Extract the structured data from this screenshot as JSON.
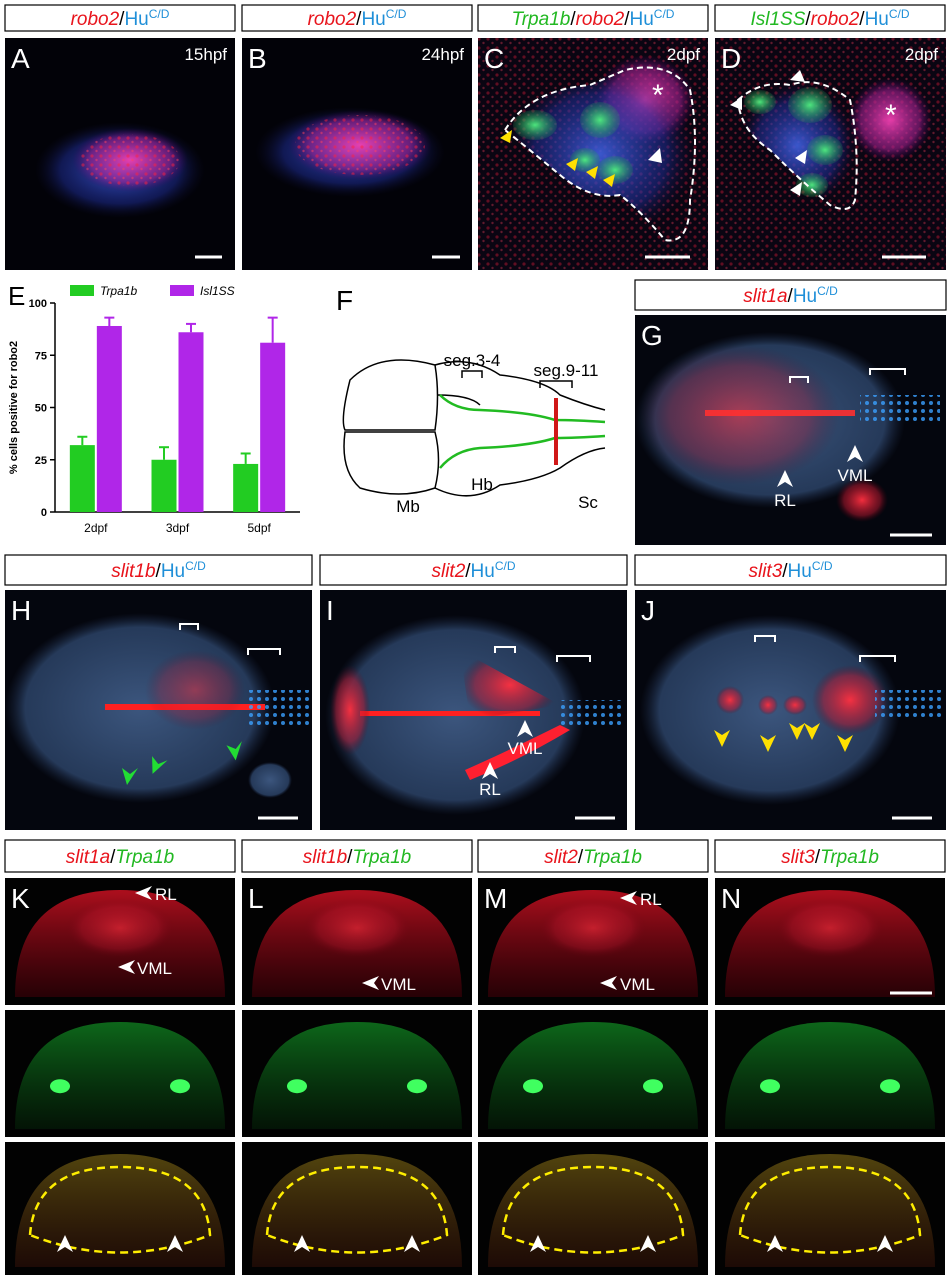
{
  "panels": {
    "A": {
      "letter": "A",
      "stage": "15hpf",
      "header": [
        {
          "text": "robo2",
          "color": "#e8141c"
        },
        {
          "text": "/",
          "color": "#000000"
        },
        {
          "text": "Hu",
          "color": "#1f8fd8"
        },
        {
          "text": "C/D",
          "color": "#1f8fd8"
        }
      ]
    },
    "B": {
      "letter": "B",
      "stage": "24hpf",
      "header": [
        {
          "text": "robo2",
          "color": "#e8141c"
        },
        {
          "text": "/",
          "color": "#000000"
        },
        {
          "text": "Hu",
          "color": "#1f8fd8"
        },
        {
          "text": "C/D",
          "color": "#1f8fd8"
        }
      ]
    },
    "C": {
      "letter": "C",
      "stage": "2dpf",
      "labels": [
        "*"
      ],
      "header": [
        {
          "text": "Trpa1b",
          "color": "#22b822"
        },
        {
          "text": "/",
          "color": "#000000"
        },
        {
          "text": "robo2",
          "color": "#e8141c"
        },
        {
          "text": "/",
          "color": "#000000"
        },
        {
          "text": "Hu",
          "color": "#1f8fd8"
        },
        {
          "text": "C/D",
          "color": "#1f8fd8"
        }
      ]
    },
    "D": {
      "letter": "D",
      "stage": "2dpf",
      "labels": [
        "*"
      ],
      "header": [
        {
          "text": "Isl1SS",
          "color": "#22b822"
        },
        {
          "text": "/",
          "color": "#000000"
        },
        {
          "text": "robo2",
          "color": "#e8141c"
        },
        {
          "text": "/",
          "color": "#000000"
        },
        {
          "text": "Hu",
          "color": "#1f8fd8"
        },
        {
          "text": "C/D",
          "color": "#1f8fd8"
        }
      ]
    },
    "F": {
      "letter": "F",
      "labels": [
        "seg.3-4",
        "seg.9-11",
        "Mb",
        "Hb",
        "Sc"
      ]
    },
    "G": {
      "letter": "G",
      "labels": [
        "RL",
        "VML"
      ],
      "header": [
        {
          "text": "slit1a",
          "color": "#e8141c"
        },
        {
          "text": "/",
          "color": "#000000"
        },
        {
          "text": "Hu",
          "color": "#1f8fd8"
        },
        {
          "text": "C/D",
          "color": "#1f8fd8"
        }
      ]
    },
    "H": {
      "letter": "H",
      "header": [
        {
          "text": "slit1b",
          "color": "#e8141c"
        },
        {
          "text": "/",
          "color": "#000000"
        },
        {
          "text": "Hu",
          "color": "#1f8fd8"
        },
        {
          "text": "C/D",
          "color": "#1f8fd8"
        }
      ]
    },
    "I": {
      "letter": "I",
      "labels": [
        "VML",
        "RL"
      ],
      "header": [
        {
          "text": "slit2",
          "color": "#e8141c"
        },
        {
          "text": "/",
          "color": "#000000"
        },
        {
          "text": "Hu",
          "color": "#1f8fd8"
        },
        {
          "text": "C/D",
          "color": "#1f8fd8"
        }
      ]
    },
    "J": {
      "letter": "J",
      "header": [
        {
          "text": "slit3",
          "color": "#e8141c"
        },
        {
          "text": "/",
          "color": "#000000"
        },
        {
          "text": "Hu",
          "color": "#1f8fd8"
        },
        {
          "text": "C/D",
          "color": "#1f8fd8"
        }
      ]
    },
    "K": {
      "letter": "K",
      "labels": [
        "RL",
        "VML"
      ],
      "header": [
        {
          "text": "slit1a",
          "color": "#e8141c"
        },
        {
          "text": "/",
          "color": "#000000"
        },
        {
          "text": "Trpa1b",
          "color": "#22b822"
        }
      ]
    },
    "L": {
      "letter": "L",
      "labels": [
        "VML"
      ],
      "header": [
        {
          "text": "slit1b",
          "color": "#e8141c"
        },
        {
          "text": "/",
          "color": "#000000"
        },
        {
          "text": "Trpa1b",
          "color": "#22b822"
        }
      ]
    },
    "M": {
      "letter": "M",
      "labels": [
        "RL",
        "VML"
      ],
      "header": [
        {
          "text": "slit2",
          "color": "#e8141c"
        },
        {
          "text": "/",
          "color": "#000000"
        },
        {
          "text": "Trpa1b",
          "color": "#22b822"
        }
      ]
    },
    "N": {
      "letter": "N",
      "header": [
        {
          "text": "slit3",
          "color": "#e8141c"
        },
        {
          "text": "/",
          "color": "#000000"
        },
        {
          "text": "Trpa1b",
          "color": "#22b822"
        }
      ]
    }
  },
  "chart_data": {
    "type": "bar",
    "letter": "E",
    "y_label": "% cells positive for robo2",
    "categories": [
      "2dpf",
      "3dpf",
      "5dpf"
    ],
    "series": [
      {
        "name": "Trpa1b",
        "color": "#22cc22",
        "values": [
          32,
          25,
          23
        ],
        "errors": [
          4,
          6,
          5
        ]
      },
      {
        "name": "Isl1SS",
        "color": "#b026e8",
        "values": [
          89,
          86,
          81
        ],
        "errors": [
          4,
          4,
          12
        ]
      }
    ],
    "ylim": [
      0,
      100
    ],
    "yticks": [
      0,
      25,
      50,
      75,
      100
    ],
    "legend": "top"
  }
}
